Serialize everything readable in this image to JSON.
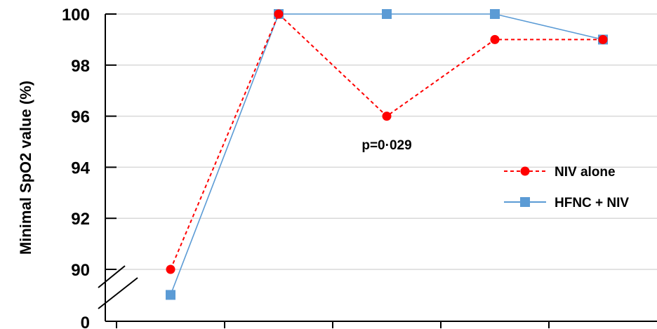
{
  "chart_data": {
    "type": "line",
    "ylabel": "Minimal SpO2 value (%)",
    "y_ticks": [
      90,
      92,
      94,
      96,
      98,
      100
    ],
    "y_break_label": "0",
    "ylim": [
      88,
      100
    ],
    "x_points": 5,
    "grid": "horizontal",
    "legend_placement": "right",
    "series": [
      {
        "name": "NIV alone",
        "values": [
          90,
          100,
          96,
          99,
          99
        ],
        "color": "#ff0000",
        "style": "dashed",
        "marker": "circle"
      },
      {
        "name": "HFNC + NIV",
        "values": [
          89,
          100,
          100,
          100,
          99
        ],
        "color": "#5b9bd5",
        "style": "solid",
        "marker": "square"
      }
    ],
    "annotations": [
      {
        "text": "p=0·029",
        "x_index": 2,
        "y": 94.7
      }
    ]
  }
}
